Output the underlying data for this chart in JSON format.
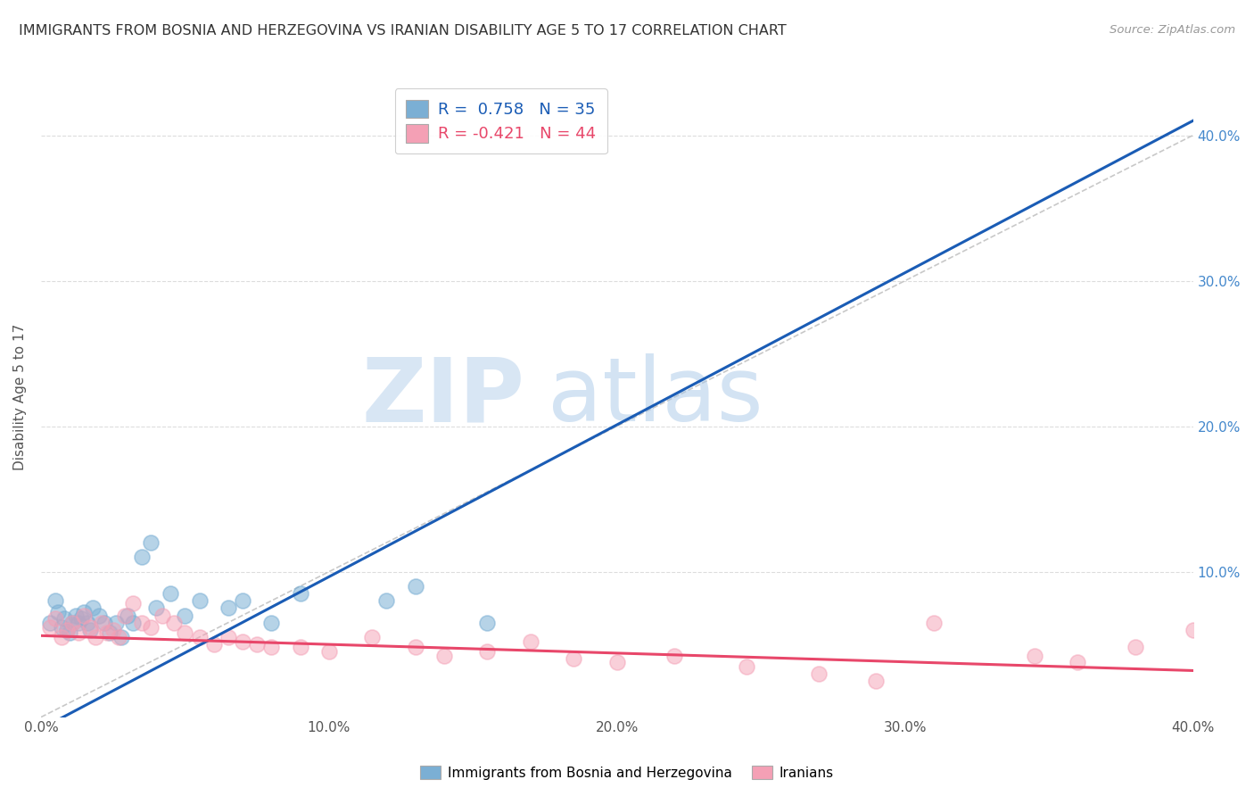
{
  "title": "IMMIGRANTS FROM BOSNIA AND HERZEGOVINA VS IRANIAN DISABILITY AGE 5 TO 17 CORRELATION CHART",
  "source": "Source: ZipAtlas.com",
  "ylabel": "Disability Age 5 to 17",
  "legend_label_blue": "Immigrants from Bosnia and Herzegovina",
  "legend_label_pink": "Iranians",
  "r_blue": 0.758,
  "n_blue": 35,
  "r_pink": -0.421,
  "n_pink": 44,
  "xlim": [
    0.0,
    0.4
  ],
  "ylim": [
    0.0,
    0.44
  ],
  "xticks": [
    0.0,
    0.1,
    0.2,
    0.3,
    0.4
  ],
  "yticks_right": [
    0.1,
    0.2,
    0.3,
    0.4
  ],
  "ytick_labels_right": [
    "10.0%",
    "20.0%",
    "30.0%",
    "40.0%"
  ],
  "xtick_labels": [
    "0.0%",
    "10.0%",
    "20.0%",
    "30.0%",
    "40.0%"
  ],
  "color_blue": "#7BAFD4",
  "color_pink": "#F4A0B5",
  "color_blue_line": "#1A5CB5",
  "color_pink_line": "#E8476A",
  "color_ref_line": "#BBBBBB",
  "background_color": "#FFFFFF",
  "watermark_zip": "ZIP",
  "watermark_atlas": "atlas",
  "blue_line_x0": 0.0,
  "blue_line_y0": -0.008,
  "blue_line_x1": 0.4,
  "blue_line_y1": 0.41,
  "pink_line_x0": 0.0,
  "pink_line_y0": 0.056,
  "pink_line_x1": 0.4,
  "pink_line_y1": 0.032,
  "blue_scatter_x": [
    0.003,
    0.005,
    0.006,
    0.007,
    0.008,
    0.009,
    0.01,
    0.011,
    0.012,
    0.013,
    0.014,
    0.015,
    0.016,
    0.017,
    0.018,
    0.02,
    0.022,
    0.024,
    0.026,
    0.028,
    0.03,
    0.032,
    0.035,
    0.038,
    0.04,
    0.045,
    0.05,
    0.055,
    0.065,
    0.07,
    0.08,
    0.09,
    0.12,
    0.13,
    0.155
  ],
  "blue_scatter_y": [
    0.065,
    0.08,
    0.072,
    0.062,
    0.068,
    0.06,
    0.058,
    0.065,
    0.07,
    0.065,
    0.068,
    0.072,
    0.065,
    0.06,
    0.075,
    0.07,
    0.065,
    0.058,
    0.065,
    0.055,
    0.07,
    0.065,
    0.11,
    0.12,
    0.075,
    0.085,
    0.07,
    0.08,
    0.075,
    0.08,
    0.065,
    0.085,
    0.08,
    0.09,
    0.065
  ],
  "pink_scatter_x": [
    0.003,
    0.005,
    0.007,
    0.009,
    0.011,
    0.013,
    0.015,
    0.017,
    0.019,
    0.021,
    0.023,
    0.025,
    0.027,
    0.029,
    0.032,
    0.035,
    0.038,
    0.042,
    0.046,
    0.05,
    0.055,
    0.06,
    0.065,
    0.07,
    0.075,
    0.08,
    0.09,
    0.1,
    0.115,
    0.13,
    0.14,
    0.155,
    0.17,
    0.185,
    0.2,
    0.22,
    0.245,
    0.27,
    0.29,
    0.31,
    0.345,
    0.36,
    0.38,
    0.4
  ],
  "pink_scatter_y": [
    0.062,
    0.068,
    0.055,
    0.06,
    0.065,
    0.058,
    0.07,
    0.062,
    0.055,
    0.065,
    0.058,
    0.06,
    0.055,
    0.07,
    0.078,
    0.065,
    0.062,
    0.07,
    0.065,
    0.058,
    0.055,
    0.05,
    0.055,
    0.052,
    0.05,
    0.048,
    0.048,
    0.045,
    0.055,
    0.048,
    0.042,
    0.045,
    0.052,
    0.04,
    0.038,
    0.042,
    0.035,
    0.03,
    0.025,
    0.065,
    0.042,
    0.038,
    0.048,
    0.06
  ]
}
